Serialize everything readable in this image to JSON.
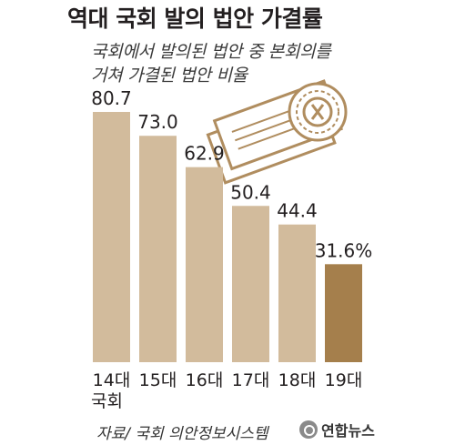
{
  "title": "역대 국회 발의 법안 가결률",
  "subtitle_lines": [
    "국회에서 발의된 법안 중 본회의를",
    "거쳐 가결된 법안 비율"
  ],
  "source": "자료/ 국회 의안정보시스템",
  "logo_text": "연합뉴스",
  "icon": "national-assembly-documents-seal-icon",
  "colors": {
    "bar": "#d2bb9c",
    "bar_highlight": "#a57f4c"
  },
  "chart_data": {
    "type": "bar",
    "title": "역대 국회 발의 법안 가결률",
    "categories": [
      "14대",
      "15대",
      "16대",
      "17대",
      "18대",
      "19대"
    ],
    "category_group_label": "국회",
    "values": [
      80.7,
      73.0,
      62.9,
      50.4,
      44.4,
      31.6
    ],
    "value_labels": [
      "80.7",
      "73.0",
      "62.9",
      "50.4",
      "44.4",
      "31.6%"
    ],
    "highlight_index": 5,
    "ylim": [
      0,
      85
    ],
    "grid": false,
    "legend": "none",
    "xlabel": "",
    "ylabel": ""
  }
}
